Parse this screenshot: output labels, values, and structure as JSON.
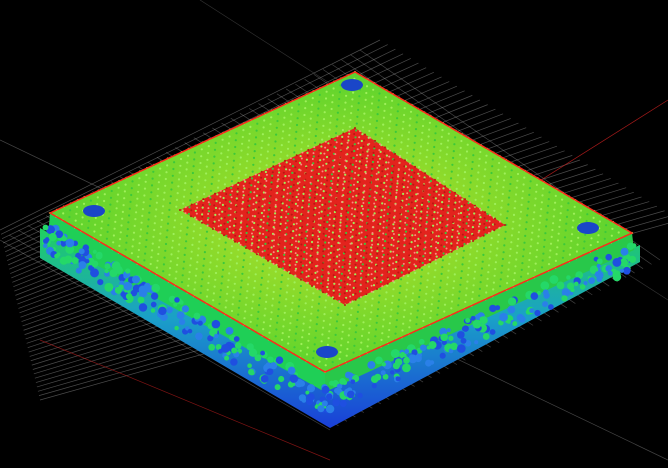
{
  "scene": {
    "background": "#000000",
    "colors": {
      "top_surface": "#5fd62a",
      "center_region": "#e8241c",
      "edge_outline": "#ff2a1a",
      "side_green": "#22d04a",
      "base_blue": "#1f5fe0",
      "grid": "#d8d8d8"
    }
  }
}
